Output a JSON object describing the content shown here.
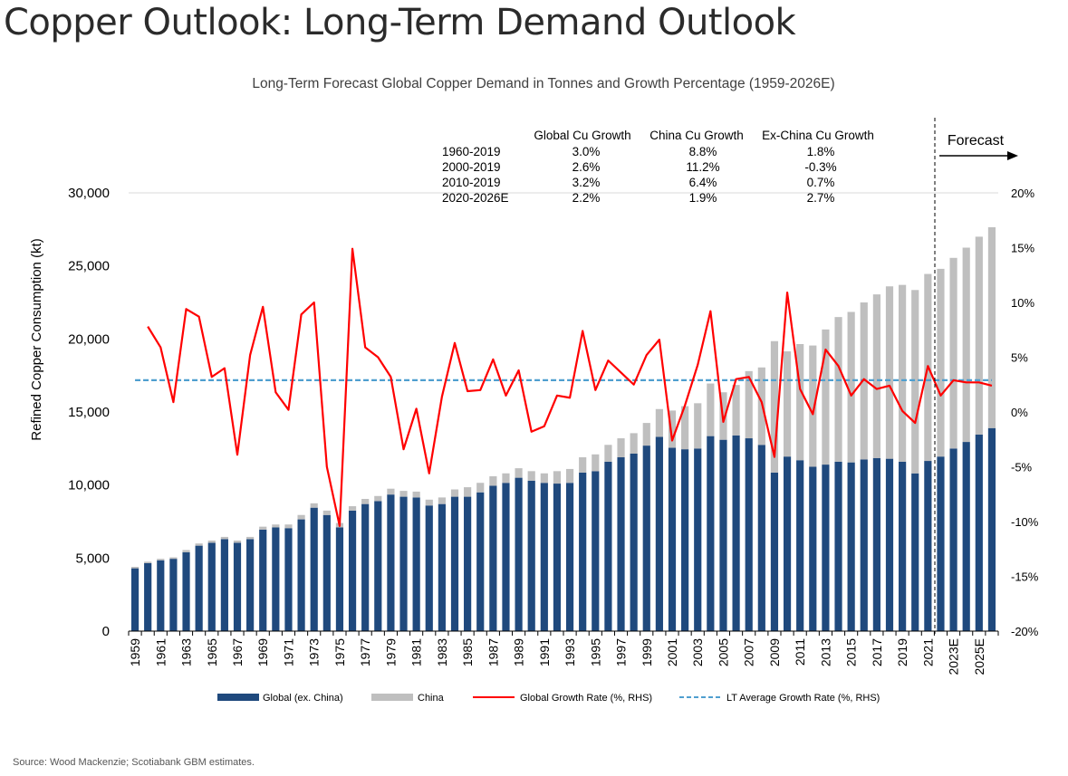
{
  "page": {
    "title": "Copper Outlook: Long-Term Demand Outlook",
    "source": "Source: Wood Mackenzie; Scotiabank GBM estimates."
  },
  "colors": {
    "global_ex_china": "#1f497d",
    "china": "#bfbfbf",
    "growth_line": "#ff0000",
    "lt_average": "#4f9fcf"
  },
  "table": {
    "columns": [
      "Global Cu Growth",
      "China Cu Growth",
      "Ex-China Cu Growth"
    ],
    "rows": [
      {
        "period": "1960-2019",
        "values": [
          "3.0%",
          "8.8%",
          "1.8%"
        ]
      },
      {
        "period": "2000-2019",
        "values": [
          "2.6%",
          "11.2%",
          "-0.3%"
        ]
      },
      {
        "period": "2010-2019",
        "values": [
          "3.2%",
          "6.4%",
          "0.7%"
        ]
      },
      {
        "period": "2020-2026E",
        "values": [
          "2.2%",
          "1.9%",
          "2.7%"
        ]
      }
    ]
  },
  "forecast_label": "Forecast",
  "chart_data": {
    "type": "bar",
    "title": "Long-Term Forecast Global Copper Demand in Tonnes and Growth Percentage (1959-2026E)",
    "ylabel": "Refined Copper Consumption (kt)",
    "ylim": [
      0,
      30000
    ],
    "y_ticks": [
      "0",
      "5,000",
      "10,000",
      "15,000",
      "20,000",
      "25,000",
      "30,000"
    ],
    "y2lim": [
      -20,
      20
    ],
    "y2_ticks": [
      "-20%",
      "-15%",
      "-10%",
      "-5%",
      "0%",
      "5%",
      "10%",
      "15%",
      "20%"
    ],
    "categories": [
      "1959",
      "1960",
      "1961",
      "1962",
      "1963",
      "1964",
      "1965",
      "1966",
      "1967",
      "1968",
      "1969",
      "1970",
      "1971",
      "1972",
      "1973",
      "1974",
      "1975",
      "1976",
      "1977",
      "1978",
      "1979",
      "1980",
      "1981",
      "1982",
      "1983",
      "1984",
      "1985",
      "1986",
      "1987",
      "1988",
      "1989",
      "1990",
      "1991",
      "1992",
      "1993",
      "1994",
      "1995",
      "1996",
      "1997",
      "1998",
      "1999",
      "2000",
      "2001",
      "2002",
      "2003",
      "2004",
      "2005",
      "2006",
      "2007",
      "2008",
      "2009",
      "2010",
      "2011",
      "2012",
      "2013",
      "2014",
      "2015",
      "2016",
      "2017",
      "2018",
      "2019",
      "2020",
      "2021",
      "2022E",
      "2023E",
      "2024E",
      "2025E",
      "2026E"
    ],
    "x_tick_labels": [
      "1959",
      "1961",
      "1963",
      "1965",
      "1967",
      "1969",
      "1971",
      "1973",
      "1975",
      "1977",
      "1979",
      "1981",
      "1983",
      "1985",
      "1987",
      "1989",
      "1991",
      "1993",
      "1995",
      "1997",
      "1999",
      "2001",
      "2003",
      "2005",
      "2007",
      "2009",
      "2011",
      "2013",
      "2015",
      "2017",
      "2019",
      "2021",
      "2023E",
      "2025E"
    ],
    "series": [
      {
        "name": "Global (ex. China)",
        "type": "bar",
        "stack": "demand",
        "values": [
          4300,
          4650,
          4850,
          4950,
          5400,
          5850,
          6050,
          6300,
          6050,
          6300,
          6950,
          7100,
          7050,
          7650,
          8450,
          7950,
          7100,
          8250,
          8700,
          8900,
          9350,
          9200,
          9150,
          8600,
          8700,
          9200,
          9200,
          9500,
          9950,
          10150,
          10500,
          10300,
          10150,
          10100,
          10150,
          10850,
          10950,
          11600,
          11900,
          12150,
          12700,
          13300,
          12550,
          12450,
          12500,
          13350,
          13100,
          13400,
          13200,
          12750,
          10850,
          11950,
          11700,
          11250,
          11400,
          11600,
          11550,
          11750,
          11850,
          11800,
          11600,
          10800,
          11650,
          11950,
          12500,
          12950,
          13450,
          13900
        ]
      },
      {
        "name": "China",
        "type": "bar",
        "stack": "demand",
        "values": [
          100,
          100,
          100,
          100,
          150,
          150,
          150,
          150,
          150,
          150,
          200,
          200,
          250,
          300,
          300,
          300,
          300,
          300,
          350,
          350,
          400,
          400,
          400,
          400,
          450,
          500,
          650,
          650,
          650,
          650,
          650,
          650,
          650,
          850,
          950,
          1050,
          1150,
          1150,
          1300,
          1400,
          1550,
          1900,
          2550,
          2950,
          3100,
          3600,
          3250,
          3450,
          4600,
          5300,
          9000,
          7200,
          7950,
          8300,
          9250,
          9900,
          10300,
          10750,
          11200,
          11800,
          12100,
          12550,
          12800,
          12850,
          13050,
          13300,
          13550,
          13750
        ]
      },
      {
        "name": "Global Growth Rate (%, RHS)",
        "type": "line",
        "axis": "right",
        "values": [
          null,
          7.8,
          5.9,
          0.9,
          9.4,
          8.7,
          3.2,
          4.0,
          -3.9,
          5.2,
          9.6,
          1.8,
          0.2,
          8.9,
          10.0,
          -5.0,
          -10.4,
          14.9,
          5.9,
          5.0,
          3.2,
          -3.4,
          0.3,
          -5.6,
          1.4,
          6.3,
          1.9,
          2.0,
          4.8,
          1.5,
          3.8,
          -1.8,
          -1.3,
          1.5,
          1.3,
          7.4,
          2.0,
          4.7,
          3.6,
          2.5,
          5.2,
          6.6,
          -2.6,
          0.6,
          4.3,
          9.2,
          -0.9,
          3.0,
          3.2,
          0.9,
          -4.1,
          10.9,
          2.1,
          -0.2,
          5.7,
          4.2,
          1.5,
          3.0,
          2.1,
          2.4,
          0.1,
          -1.0,
          4.2,
          1.5,
          2.9,
          2.7,
          2.7,
          2.4
        ]
      },
      {
        "name": "LT Average Growth Rate (%, RHS)",
        "type": "line",
        "axis": "right",
        "style": "dashed",
        "values": [
          2.9,
          2.9,
          2.9,
          2.9,
          2.9,
          2.9,
          2.9,
          2.9,
          2.9,
          2.9,
          2.9,
          2.9,
          2.9,
          2.9,
          2.9,
          2.9,
          2.9,
          2.9,
          2.9,
          2.9,
          2.9,
          2.9,
          2.9,
          2.9,
          2.9,
          2.9,
          2.9,
          2.9,
          2.9,
          2.9,
          2.9,
          2.9,
          2.9,
          2.9,
          2.9,
          2.9,
          2.9,
          2.9,
          2.9,
          2.9,
          2.9,
          2.9,
          2.9,
          2.9,
          2.9,
          2.9,
          2.9,
          2.9,
          2.9,
          2.9,
          2.9,
          2.9,
          2.9,
          2.9,
          2.9,
          2.9,
          2.9,
          2.9,
          2.9,
          2.9,
          2.9,
          2.9,
          2.9,
          2.9,
          2.9,
          2.9,
          2.9,
          2.9
        ]
      }
    ],
    "forecast_start": "2022E",
    "legend_position": "bottom",
    "grid": true
  }
}
